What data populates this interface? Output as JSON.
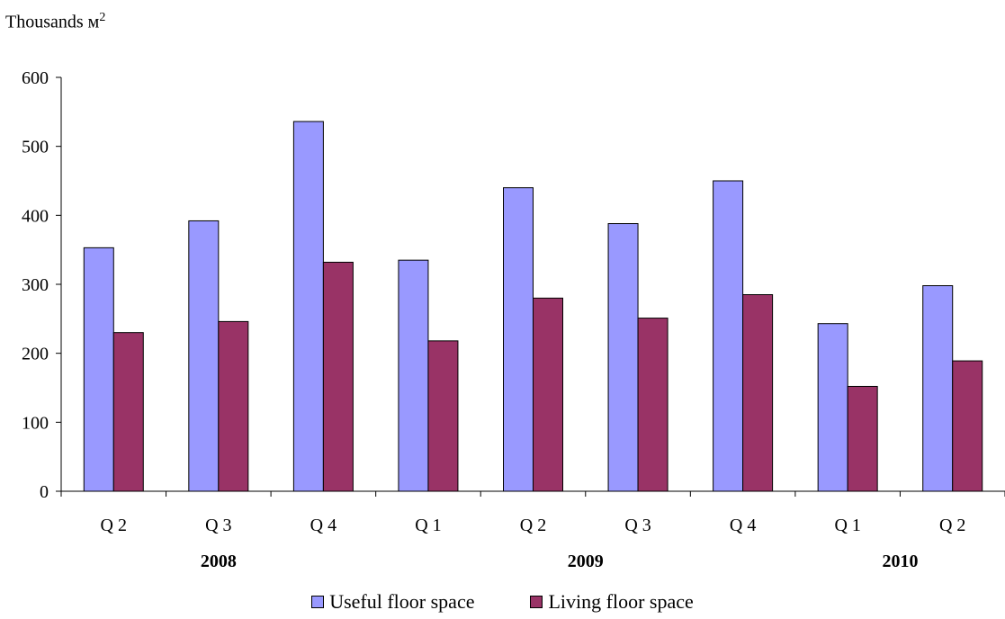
{
  "unit_label": {
    "text": "Thousands м",
    "sup": "2"
  },
  "chart_data": {
    "type": "bar",
    "categories": [
      "Q 2",
      "Q 3",
      "Q 4",
      "Q 1",
      "Q 2",
      "Q 3",
      "Q 4",
      "Q 1",
      "Q 2"
    ],
    "groups": [
      {
        "label": "2008",
        "span": [
          0,
          2
        ]
      },
      {
        "label": "2009",
        "span": [
          3,
          6
        ]
      },
      {
        "label": "2010",
        "span": [
          7,
          8
        ]
      }
    ],
    "series": [
      {
        "name": "Useful floor space",
        "color": "#9999ff",
        "values": [
          353,
          392,
          536,
          335,
          440,
          388,
          450,
          243,
          298
        ]
      },
      {
        "name": "Living floor space",
        "color": "#993366",
        "values": [
          230,
          246,
          332,
          218,
          280,
          251,
          285,
          152,
          189
        ]
      }
    ],
    "ylim": [
      0,
      600
    ],
    "yticks": [
      0,
      100,
      200,
      300,
      400,
      500,
      600
    ],
    "grid": false,
    "legend": "bottom"
  }
}
